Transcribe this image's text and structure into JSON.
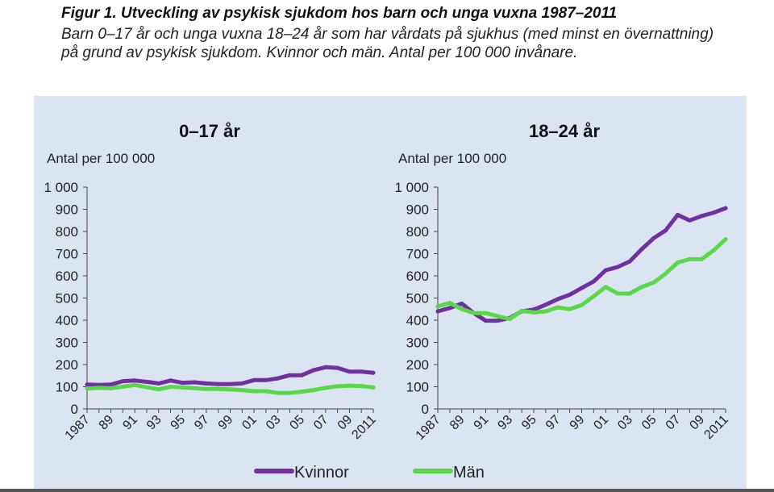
{
  "figure": {
    "title": "Figur 1. Utveckling av psykisk sjukdom hos barn och unga vuxna 1987–2011",
    "subtitle": "Barn 0–17 år och unga vuxna 18–24 år som har vårdats på sjukhus (med minst en övernattning) på grund av psykisk sjukdom. Kvinnor och män. Antal per 100 000 invånare."
  },
  "chart_data": [
    {
      "type": "line",
      "title": "0–17 år",
      "ylabel": "Antal per 100 000",
      "xlabel": "",
      "ylim": [
        0,
        1000
      ],
      "yticks": [
        "0",
        "100",
        "200",
        "300",
        "400",
        "500",
        "600",
        "700",
        "800",
        "900",
        "1 000"
      ],
      "x": [
        1987,
        1988,
        1989,
        1990,
        1991,
        1992,
        1993,
        1994,
        1995,
        1996,
        1997,
        1998,
        1999,
        2000,
        2001,
        2002,
        2003,
        2004,
        2005,
        2006,
        2007,
        2008,
        2009,
        2010,
        2011
      ],
      "xtick_labels": [
        "1987",
        "89",
        "91",
        "93",
        "95",
        "97",
        "99",
        "01",
        "03",
        "05",
        "07",
        "09",
        "2011"
      ],
      "grid": false,
      "series": [
        {
          "name": "Kvinnor",
          "color": "#7030a0",
          "values": [
            110,
            108,
            110,
            125,
            128,
            122,
            115,
            128,
            118,
            120,
            115,
            112,
            112,
            115,
            130,
            130,
            138,
            152,
            152,
            175,
            188,
            185,
            168,
            168,
            163
          ]
        },
        {
          "name": "Män",
          "color": "#5bd84a",
          "values": [
            92,
            95,
            93,
            100,
            108,
            98,
            88,
            100,
            97,
            93,
            90,
            90,
            88,
            85,
            80,
            80,
            72,
            72,
            78,
            85,
            95,
            102,
            105,
            103,
            97
          ]
        }
      ]
    },
    {
      "type": "line",
      "title": "18–24 år",
      "ylabel": "Antal per 100 000",
      "xlabel": "",
      "ylim": [
        0,
        1000
      ],
      "yticks": [
        "0",
        "100",
        "200",
        "300",
        "400",
        "500",
        "600",
        "700",
        "800",
        "900",
        "1 000"
      ],
      "x": [
        1987,
        1988,
        1989,
        1990,
        1991,
        1992,
        1993,
        1994,
        1995,
        1996,
        1997,
        1998,
        1999,
        2000,
        2001,
        2002,
        2003,
        2004,
        2005,
        2006,
        2007,
        2008,
        2009,
        2010,
        2011
      ],
      "xtick_labels": [
        "1987",
        "89",
        "91",
        "93",
        "95",
        "97",
        "99",
        "01",
        "03",
        "05",
        "07",
        "09",
        "2011"
      ],
      "grid": false,
      "series": [
        {
          "name": "Kvinnor",
          "color": "#7030a0",
          "values": [
            440,
            455,
            475,
            432,
            398,
            398,
            410,
            440,
            448,
            470,
            495,
            515,
            545,
            575,
            625,
            640,
            665,
            720,
            770,
            805,
            875,
            850,
            870,
            885,
            905
          ]
        },
        {
          "name": "Män",
          "color": "#5bd84a",
          "values": [
            462,
            478,
            450,
            432,
            432,
            418,
            405,
            442,
            435,
            440,
            458,
            450,
            468,
            508,
            550,
            520,
            520,
            550,
            570,
            610,
            660,
            675,
            675,
            715,
            765
          ]
        }
      ]
    }
  ],
  "legend": {
    "placement": "bottom-center",
    "items": [
      {
        "label": "Kvinnor",
        "color": "#7030a0"
      },
      {
        "label": "Män",
        "color": "#5bd84a"
      }
    ]
  }
}
